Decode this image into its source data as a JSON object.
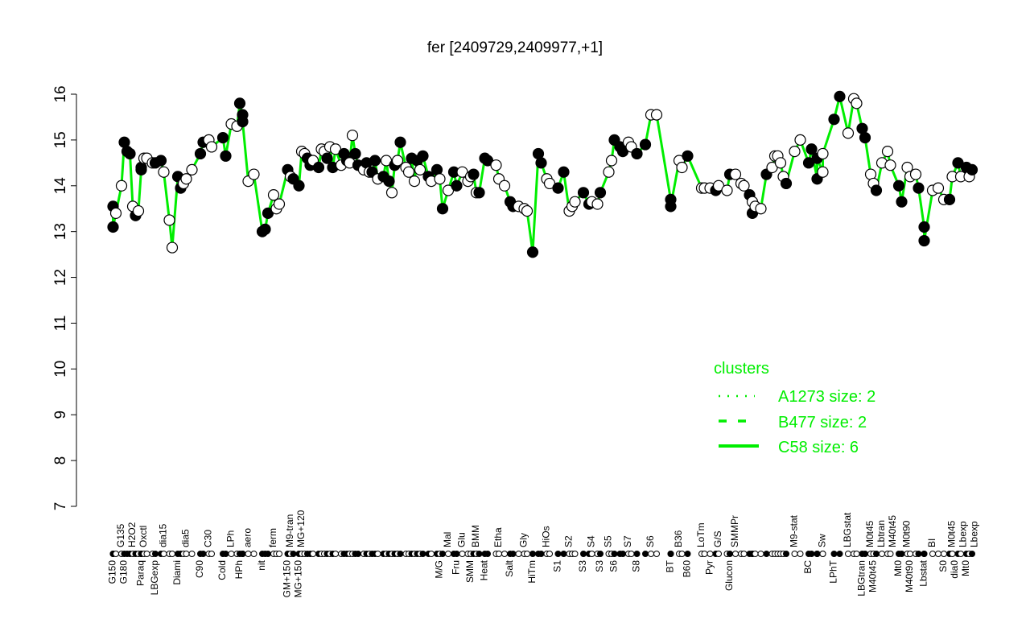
{
  "chart_data": {
    "type": "scatter",
    "title": "fer [2409729,2409977,+1]",
    "ylim": [
      7,
      16
    ],
    "yticks": [
      7,
      8,
      9,
      10,
      11,
      12,
      13,
      14,
      15,
      16
    ],
    "grid": false,
    "legend": {
      "title": "clusters",
      "placement": "bottom-right",
      "entries": [
        {
          "name": "A1273 size: 2",
          "style": "dotted"
        },
        {
          "name": "B477 size: 2",
          "style": "dashed"
        },
        {
          "name": "C58 size: 6",
          "style": "solid"
        }
      ]
    },
    "line_color": "#00ee00",
    "points": [
      [
        3,
        13.55,
        1
      ],
      [
        3,
        13.1,
        1
      ],
      [
        4,
        13.4,
        0
      ],
      [
        6,
        14.0,
        0
      ],
      [
        7,
        14.95,
        1
      ],
      [
        8,
        14.75,
        1
      ],
      [
        9,
        14.7,
        1
      ],
      [
        10,
        13.55,
        0
      ],
      [
        11,
        13.35,
        1
      ],
      [
        12,
        13.45,
        0
      ],
      [
        13,
        14.35,
        1
      ],
      [
        13,
        14.4,
        1
      ],
      [
        14,
        14.6,
        0
      ],
      [
        15,
        14.6,
        0
      ],
      [
        17,
        14.5,
        0
      ],
      [
        18,
        14.5,
        1
      ],
      [
        20,
        14.55,
        1
      ],
      [
        21,
        14.3,
        0
      ],
      [
        23,
        13.25,
        0
      ],
      [
        24,
        12.65,
        0
      ],
      [
        26,
        14.2,
        1
      ],
      [
        27,
        13.95,
        1
      ],
      [
        28,
        14.05,
        0
      ],
      [
        29,
        14.15,
        0
      ],
      [
        31,
        14.35,
        0
      ],
      [
        34,
        14.7,
        1
      ],
      [
        35,
        14.95,
        1
      ],
      [
        37,
        15.0,
        0
      ],
      [
        38,
        14.85,
        0
      ],
      [
        42,
        15.05,
        1
      ],
      [
        43,
        14.65,
        1
      ],
      [
        45,
        15.35,
        0
      ],
      [
        47,
        15.3,
        0
      ],
      [
        48,
        15.8,
        1
      ],
      [
        49,
        15.55,
        1
      ],
      [
        49,
        15.4,
        1
      ],
      [
        51,
        14.1,
        0
      ],
      [
        53,
        14.25,
        0
      ],
      [
        56,
        13.0,
        1
      ],
      [
        57,
        13.05,
        1
      ],
      [
        58,
        13.4,
        1
      ],
      [
        60,
        13.8,
        0
      ],
      [
        61,
        13.5,
        0
      ],
      [
        62,
        13.6,
        0
      ],
      [
        65,
        14.35,
        1
      ],
      [
        66,
        14.2,
        0
      ],
      [
        67,
        14.15,
        1
      ],
      [
        69,
        14.0,
        1
      ],
      [
        70,
        14.75,
        0
      ],
      [
        71,
        14.7,
        0
      ],
      [
        72,
        14.6,
        1
      ],
      [
        73,
        14.45,
        1
      ],
      [
        74,
        14.55,
        0
      ],
      [
        76,
        14.4,
        1
      ],
      [
        77,
        14.8,
        0
      ],
      [
        78,
        14.75,
        0
      ],
      [
        79,
        14.6,
        1
      ],
      [
        80,
        14.85,
        0
      ],
      [
        81,
        14.4,
        1
      ],
      [
        82,
        14.8,
        0
      ],
      [
        84,
        14.45,
        0
      ],
      [
        85,
        14.7,
        1
      ],
      [
        86,
        14.55,
        1
      ],
      [
        87,
        14.5,
        0
      ],
      [
        88,
        15.1,
        0
      ],
      [
        89,
        14.7,
        1
      ],
      [
        90,
        14.45,
        1
      ],
      [
        92,
        14.35,
        0
      ],
      [
        93,
        14.5,
        1
      ],
      [
        94,
        14.3,
        0
      ],
      [
        95,
        14.3,
        1
      ],
      [
        96,
        14.55,
        1
      ],
      [
        97,
        14.15,
        0
      ],
      [
        99,
        14.2,
        1
      ],
      [
        100,
        14.55,
        0
      ],
      [
        101,
        14.1,
        1
      ],
      [
        102,
        13.85,
        0
      ],
      [
        103,
        14.45,
        1
      ],
      [
        104,
        14.55,
        0
      ],
      [
        105,
        14.95,
        1
      ],
      [
        107,
        14.4,
        0
      ],
      [
        108,
        14.3,
        0
      ],
      [
        109,
        14.6,
        1
      ],
      [
        110,
        14.1,
        0
      ],
      [
        111,
        14.55,
        1
      ],
      [
        112,
        14.35,
        0
      ],
      [
        113,
        14.65,
        1
      ],
      [
        115,
        14.2,
        1
      ],
      [
        116,
        14.1,
        0
      ],
      [
        118,
        14.35,
        1
      ],
      [
        119,
        14.15,
        0
      ],
      [
        120,
        13.5,
        1
      ],
      [
        122,
        13.9,
        0
      ],
      [
        124,
        14.3,
        1
      ],
      [
        125,
        14.0,
        1
      ],
      [
        127,
        14.3,
        0
      ],
      [
        129,
        14.1,
        0
      ],
      [
        130,
        14.2,
        0
      ],
      [
        131,
        14.25,
        1
      ],
      [
        132,
        13.85,
        0
      ],
      [
        133,
        13.85,
        1
      ],
      [
        135,
        14.6,
        1
      ],
      [
        136,
        14.55,
        1
      ],
      [
        139,
        14.45,
        0
      ],
      [
        140,
        14.15,
        0
      ],
      [
        142,
        14.0,
        0
      ],
      [
        144,
        13.65,
        1
      ],
      [
        145,
        13.55,
        1
      ],
      [
        147,
        13.55,
        0
      ],
      [
        149,
        13.5,
        0
      ],
      [
        150,
        13.45,
        0
      ],
      [
        152,
        12.55,
        1
      ],
      [
        154,
        14.7,
        1
      ],
      [
        155,
        14.5,
        1
      ],
      [
        157,
        14.15,
        0
      ],
      [
        158,
        14.05,
        0
      ],
      [
        161,
        13.95,
        1
      ],
      [
        163,
        14.3,
        1
      ],
      [
        165,
        13.45,
        0
      ],
      [
        166,
        13.55,
        0
      ],
      [
        167,
        13.65,
        0
      ],
      [
        170,
        13.85,
        1
      ],
      [
        172,
        13.6,
        1
      ],
      [
        173,
        13.65,
        0
      ],
      [
        175,
        13.6,
        0
      ],
      [
        176,
        13.85,
        1
      ],
      [
        179,
        14.3,
        0
      ],
      [
        180,
        14.55,
        0
      ],
      [
        181,
        15.0,
        1
      ],
      [
        183,
        14.85,
        1
      ],
      [
        184,
        14.75,
        1
      ],
      [
        186,
        14.95,
        0
      ],
      [
        187,
        14.85,
        0
      ],
      [
        189,
        14.7,
        1
      ],
      [
        192,
        14.9,
        1
      ],
      [
        194,
        15.55,
        0
      ],
      [
        196,
        15.55,
        0
      ],
      [
        201,
        13.7,
        1
      ],
      [
        201,
        13.55,
        1
      ],
      [
        204,
        14.55,
        0
      ],
      [
        205,
        14.4,
        0
      ],
      [
        207,
        14.65,
        1
      ],
      [
        212,
        13.95,
        0
      ],
      [
        213,
        13.95,
        0
      ],
      [
        215,
        13.95,
        0
      ],
      [
        217,
        13.9,
        1
      ],
      [
        218,
        14.0,
        0
      ],
      [
        221,
        13.9,
        0
      ],
      [
        222,
        14.25,
        1
      ],
      [
        224,
        14.25,
        0
      ],
      [
        226,
        14.05,
        0
      ],
      [
        227,
        14.0,
        0
      ],
      [
        229,
        13.8,
        1
      ],
      [
        230,
        13.65,
        0
      ],
      [
        230,
        13.4,
        1
      ],
      [
        231,
        13.55,
        0
      ],
      [
        233,
        13.5,
        0
      ],
      [
        235,
        14.25,
        1
      ],
      [
        237,
        14.4,
        0
      ],
      [
        238,
        14.65,
        0
      ],
      [
        239,
        14.65,
        0
      ],
      [
        240,
        14.5,
        0
      ],
      [
        241,
        14.2,
        0
      ],
      [
        242,
        14.05,
        1
      ],
      [
        245,
        14.75,
        0
      ],
      [
        247,
        15.0,
        0
      ],
      [
        250,
        14.5,
        1
      ],
      [
        251,
        14.8,
        1
      ],
      [
        253,
        14.15,
        1
      ],
      [
        253,
        14.6,
        1
      ],
      [
        255,
        14.3,
        0
      ],
      [
        255,
        14.7,
        0
      ],
      [
        259,
        15.45,
        1
      ],
      [
        261,
        15.95,
        1
      ],
      [
        264,
        15.15,
        0
      ],
      [
        266,
        15.9,
        0
      ],
      [
        267,
        15.8,
        0
      ],
      [
        269,
        15.25,
        1
      ],
      [
        270,
        15.05,
        1
      ],
      [
        272,
        14.25,
        0
      ],
      [
        273,
        14.05,
        0
      ],
      [
        274,
        13.9,
        1
      ],
      [
        276,
        14.5,
        0
      ],
      [
        278,
        14.75,
        0
      ],
      [
        279,
        14.45,
        0
      ],
      [
        282,
        14.0,
        1
      ],
      [
        283,
        13.65,
        1
      ],
      [
        285,
        14.4,
        0
      ],
      [
        286,
        14.2,
        0
      ],
      [
        288,
        14.25,
        0
      ],
      [
        289,
        13.95,
        1
      ],
      [
        291,
        13.1,
        1
      ],
      [
        291,
        12.8,
        1
      ],
      [
        294,
        13.9,
        0
      ],
      [
        296,
        13.95,
        0
      ],
      [
        298,
        13.7,
        0
      ],
      [
        300,
        13.7,
        1
      ],
      [
        301,
        14.2,
        0
      ],
      [
        303,
        14.5,
        1
      ],
      [
        304,
        14.2,
        0
      ],
      [
        306,
        14.4,
        1
      ],
      [
        307,
        14.2,
        0
      ],
      [
        308,
        14.35,
        1
      ]
    ],
    "xlabels_bottom": [
      [
        3,
        "G150"
      ],
      [
        7,
        "G180"
      ],
      [
        13,
        "Paraq"
      ],
      [
        18,
        "LBGexp"
      ],
      [
        26,
        "Diami"
      ],
      [
        34,
        "C90"
      ],
      [
        42,
        "Cold"
      ],
      [
        48,
        "HPh"
      ],
      [
        56,
        "nit"
      ],
      [
        65,
        "GM+150"
      ],
      [
        69,
        "MG+150"
      ],
      [
        119,
        "M/G"
      ],
      [
        125,
        "Fru"
      ],
      [
        130,
        "SMM"
      ],
      [
        135,
        "Heat"
      ],
      [
        144,
        "Salt"
      ],
      [
        152,
        "HiTm"
      ],
      [
        161,
        "S1"
      ],
      [
        170,
        "S3"
      ],
      [
        176,
        "S3"
      ],
      [
        181,
        "S6"
      ],
      [
        189,
        "S8"
      ],
      [
        201,
        "BT"
      ],
      [
        207,
        "B60"
      ],
      [
        215,
        "Pyr"
      ],
      [
        222,
        "Glucon"
      ],
      [
        250,
        "BC"
      ],
      [
        259,
        "LPhT"
      ],
      [
        269,
        "LBGtran"
      ],
      [
        273,
        "M40t45"
      ],
      [
        282,
        "Mt0"
      ],
      [
        286,
        "M40t90"
      ],
      [
        291,
        "Lbstat"
      ],
      [
        298,
        "S0"
      ],
      [
        302,
        "dia0"
      ],
      [
        306,
        "Mt0"
      ]
    ],
    "xlabels_top": [
      [
        6,
        "G135"
      ],
      [
        10,
        "H2O2"
      ],
      [
        14,
        "Oxctl"
      ],
      [
        21,
        "dia15"
      ],
      [
        29,
        "dia5"
      ],
      [
        37,
        "C30"
      ],
      [
        45,
        "LPh"
      ],
      [
        51,
        "aero"
      ],
      [
        60,
        "ferm"
      ],
      [
        66,
        "M9-tran"
      ],
      [
        70,
        "MG+120"
      ],
      [
        122,
        "Mal"
      ],
      [
        127,
        "Glu"
      ],
      [
        132,
        "BMM"
      ],
      [
        140,
        "Etha"
      ],
      [
        149,
        "Gly"
      ],
      [
        157,
        "HiOs"
      ],
      [
        165,
        "S2"
      ],
      [
        173,
        "S4"
      ],
      [
        179,
        "S5"
      ],
      [
        186,
        "S7"
      ],
      [
        194,
        "S6"
      ],
      [
        204,
        "B36"
      ],
      [
        212,
        "LoTm"
      ],
      [
        218,
        "G/S"
      ],
      [
        224,
        "SMMPr"
      ],
      [
        245,
        "M9-stat"
      ],
      [
        255,
        "Sw"
      ],
      [
        264,
        "LBGstat"
      ],
      [
        272,
        "M0t45"
      ],
      [
        276,
        "Lbtran"
      ],
      [
        279,
        "M40t45"
      ],
      [
        285,
        "M0t90"
      ],
      [
        294,
        "BI"
      ],
      [
        301,
        "M0t45"
      ],
      [
        304,
        "Lbexp"
      ],
      [
        306,
        "Lbexp"
      ]
    ]
  }
}
